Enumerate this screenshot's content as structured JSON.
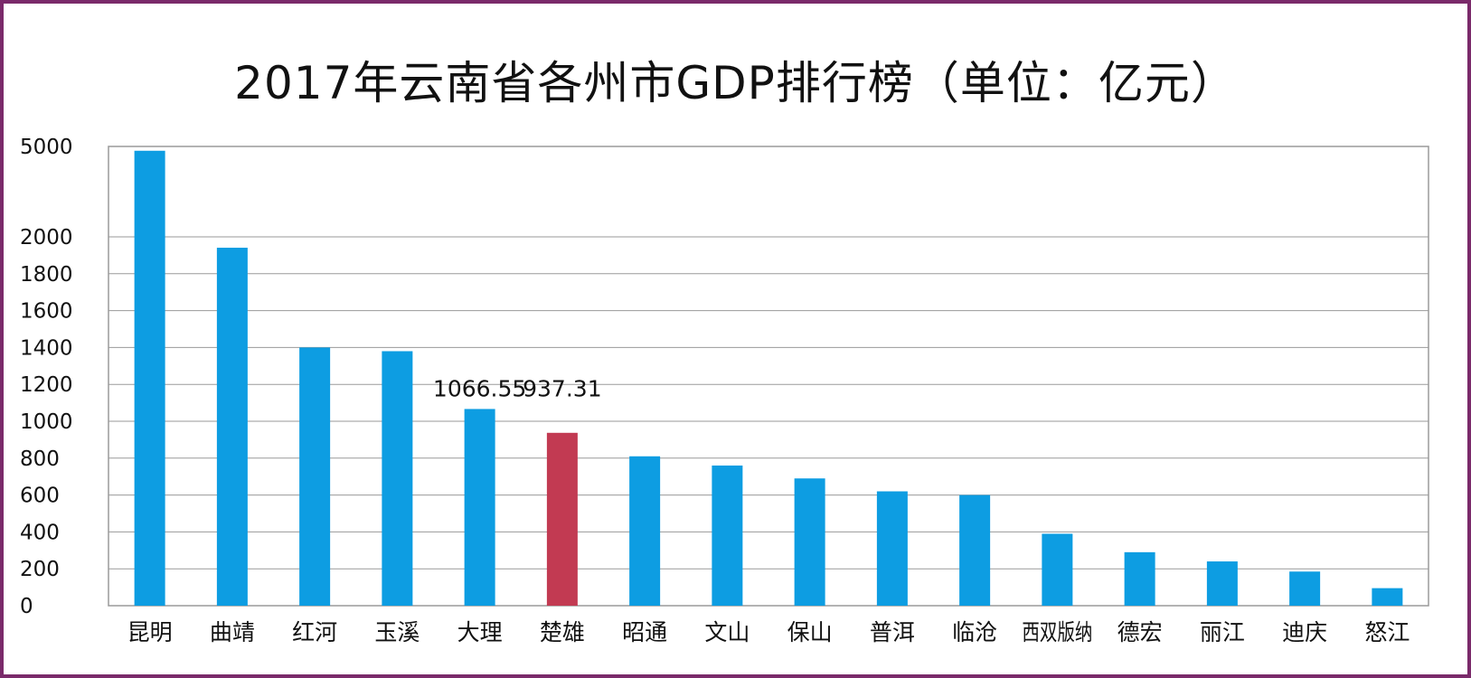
{
  "chart_data": {
    "type": "bar",
    "title": "2017年云南省各州市GDP排行榜（单位：亿元）",
    "xlabel": "",
    "ylabel": "",
    "y_tick_labels": [
      "0",
      "200",
      "400",
      "600",
      "800",
      "1000",
      "1200",
      "1400",
      "1600",
      "1800",
      "2000",
      "5000"
    ],
    "y_axis_note": "axis is broken between 2000 and 5000",
    "ylim": [
      0,
      5000
    ],
    "grid": true,
    "categories": [
      "昆明",
      "曲靖",
      "红河",
      "玉溪",
      "大理",
      "楚雄",
      "昭通",
      "文山",
      "保山",
      "普洱",
      "临沧",
      "西双版纳",
      "德宏",
      "丽江",
      "迪庆",
      "怒江"
    ],
    "values": [
      4857,
      1941,
      1400,
      1380,
      1066.55,
      937.31,
      810,
      760,
      690,
      620,
      600,
      390,
      290,
      240,
      185,
      95
    ],
    "data_labels": [
      {
        "category": "大理",
        "text": "1066.55"
      },
      {
        "category": "楚雄",
        "text": "937.31"
      }
    ],
    "colors": {
      "default_bar": "#0d9de2",
      "highlight_bar": "#c23a52",
      "highlight_category": "楚雄",
      "frame": "#7a2a6a",
      "grid": "#9a9a9a"
    }
  }
}
